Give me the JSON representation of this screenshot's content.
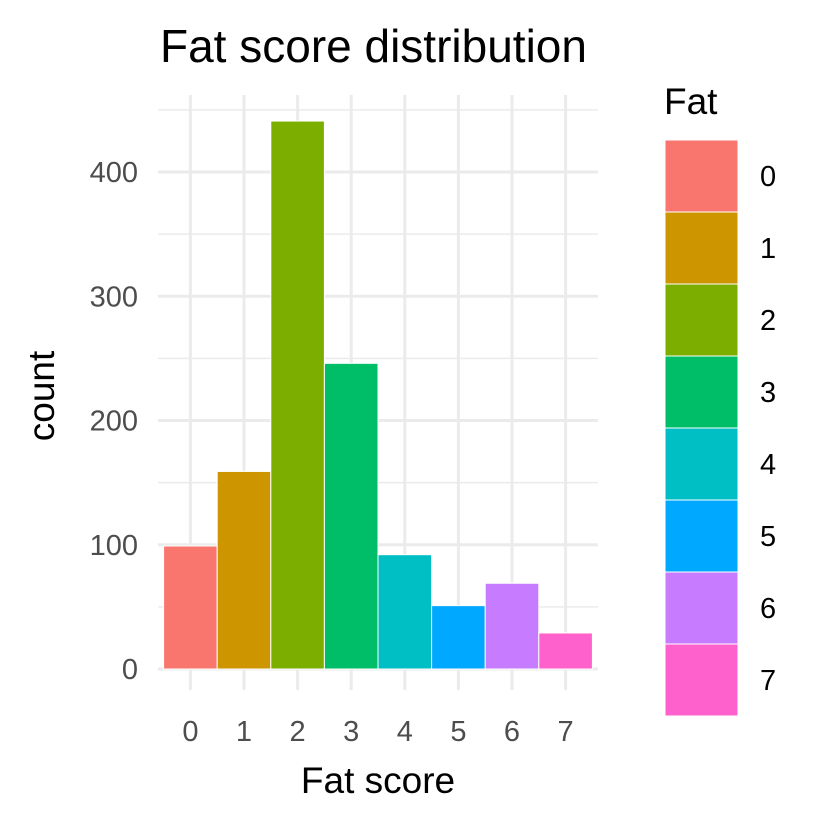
{
  "chart_data": {
    "type": "bar",
    "title": "Fat score distribution",
    "xlabel": "Fat score",
    "ylabel": "count",
    "categories": [
      "0",
      "1",
      "2",
      "3",
      "4",
      "5",
      "6",
      "7"
    ],
    "values": [
      99,
      159,
      441,
      246,
      92,
      51,
      69,
      29
    ],
    "colors": [
      "#F8766D",
      "#CD9600",
      "#7CAE00",
      "#00BE67",
      "#00BFC4",
      "#00A9FF",
      "#C77CFF",
      "#FF61CC"
    ],
    "yticks": [
      0,
      100,
      200,
      300,
      400
    ],
    "ytick_labels": [
      "0",
      "100",
      "200",
      "300",
      "400"
    ],
    "ylim": [
      0,
      460
    ],
    "grid": true,
    "legend": {
      "title": "Fat",
      "position": "right",
      "entries": [
        "0",
        "1",
        "2",
        "3",
        "4",
        "5",
        "6",
        "7"
      ]
    }
  }
}
